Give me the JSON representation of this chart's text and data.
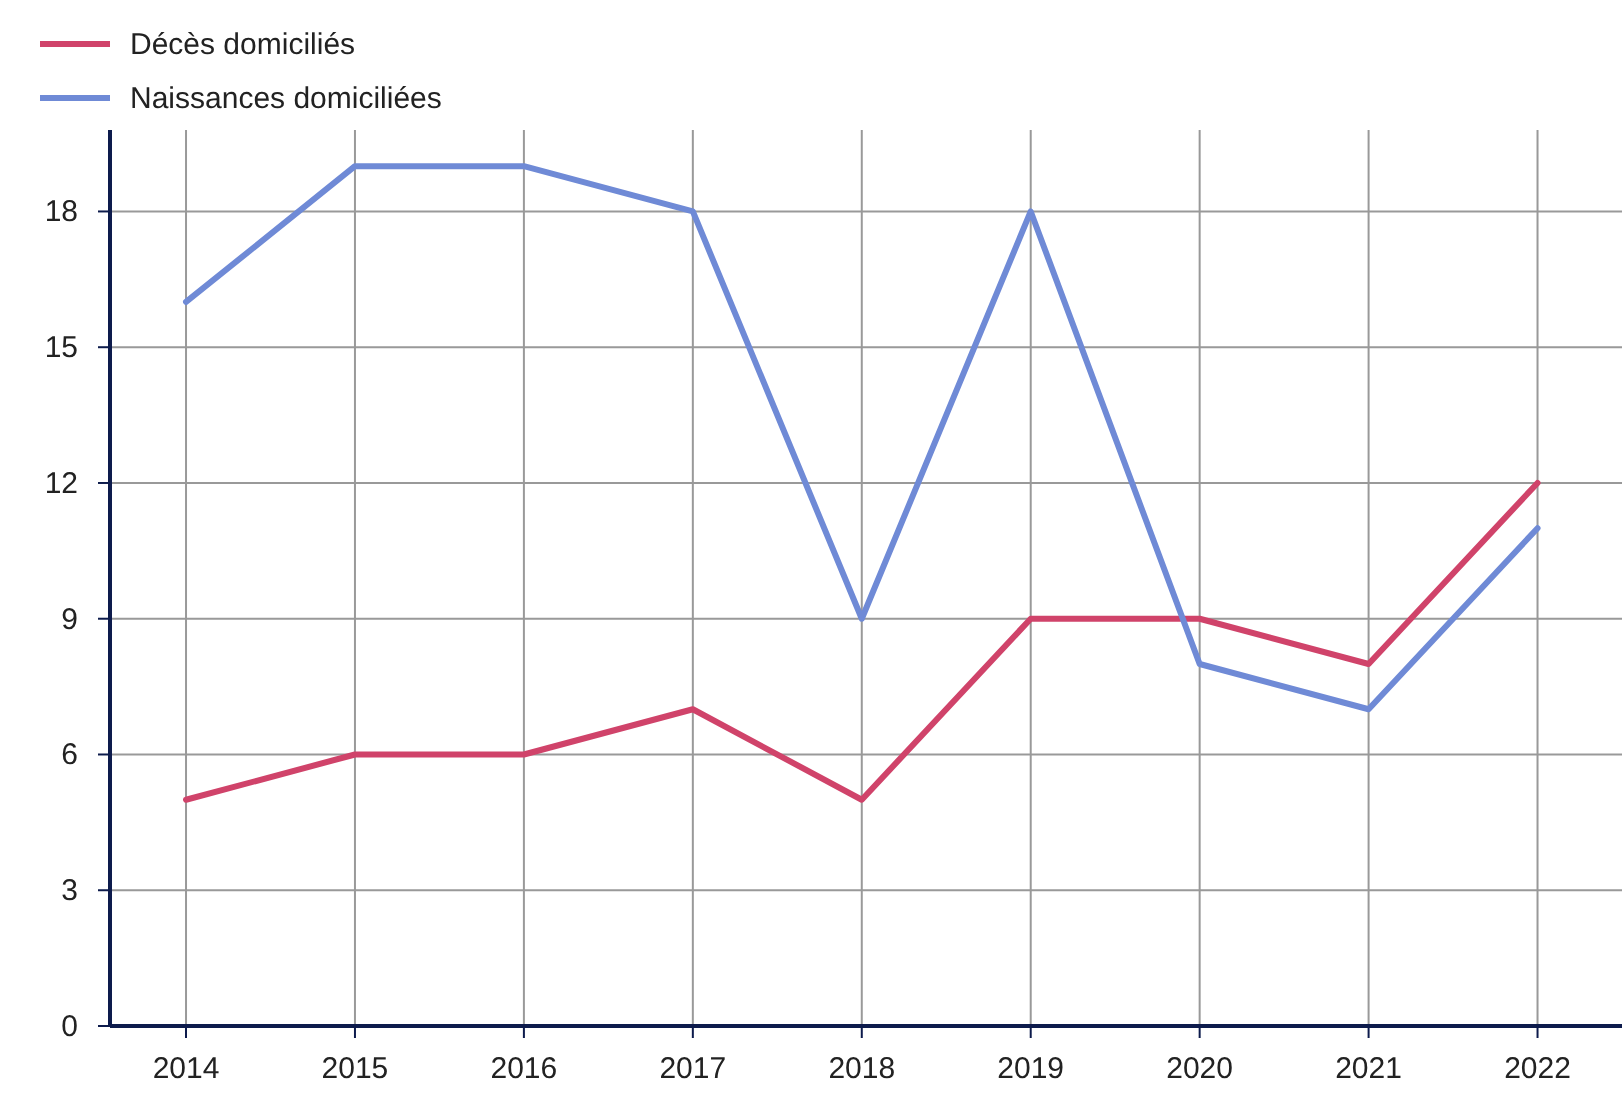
{
  "chart_data": {
    "type": "line",
    "x": [
      2014,
      2015,
      2016,
      2017,
      2018,
      2019,
      2020,
      2021,
      2022
    ],
    "series": [
      {
        "name": "Décès domiciliés",
        "color": "#d0436a",
        "values": [
          5,
          6,
          6,
          7,
          5,
          9,
          9,
          8,
          12
        ]
      },
      {
        "name": "Naissances domiciliées",
        "color": "#6f8ad6",
        "values": [
          16,
          19,
          19,
          18,
          9,
          18,
          8,
          7,
          11
        ]
      }
    ],
    "xlim": [
      2013.55,
      2022.5
    ],
    "xticks": [
      2014,
      2015,
      2016,
      2017,
      2018,
      2019,
      2020,
      2021,
      2022
    ],
    "ylim": [
      0,
      19.8
    ],
    "yticks": [
      0,
      3,
      6,
      9,
      12,
      15,
      18
    ],
    "grid": true,
    "legend": "top left",
    "marker": "none",
    "line_style": "solid"
  }
}
